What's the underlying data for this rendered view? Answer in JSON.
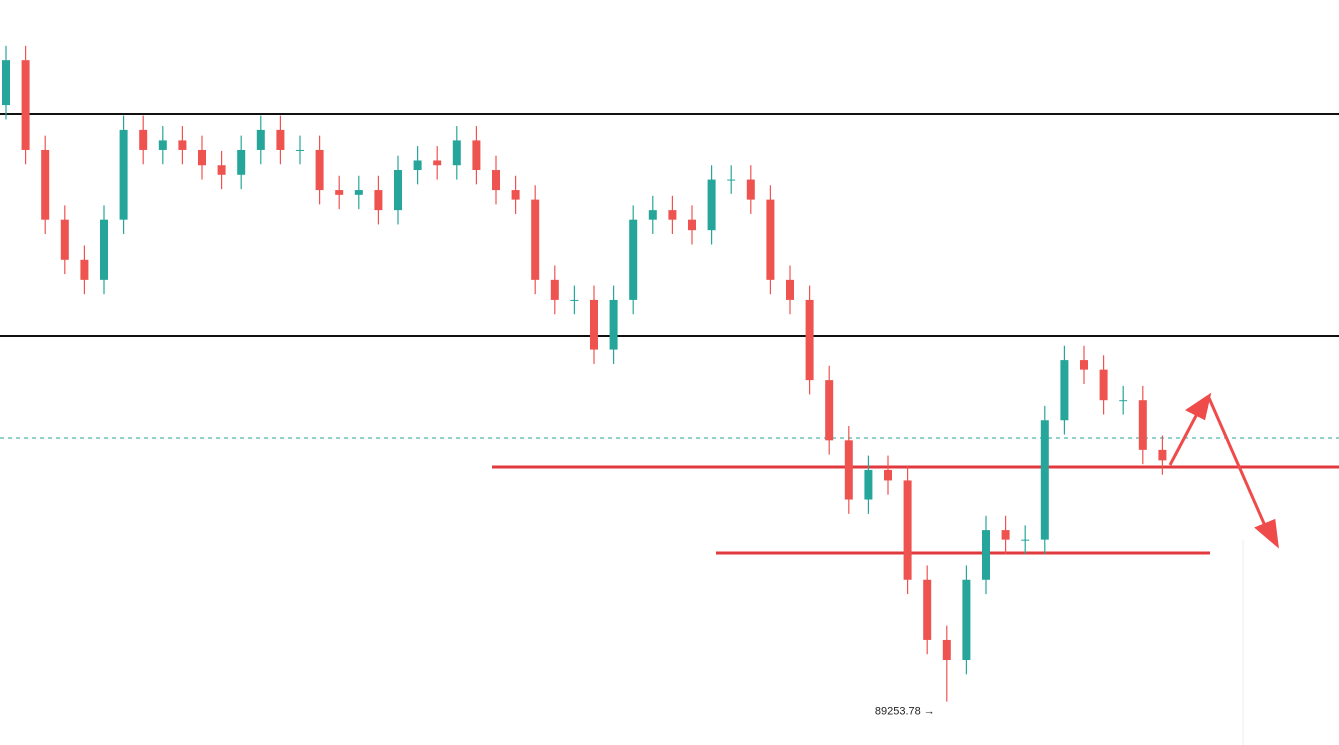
{
  "chart_data": {
    "type": "candlestick",
    "up_color": "#26a69a",
    "down_color": "#ef5350",
    "ylim": [
      88800,
      96600
    ],
    "open": [
      95500,
      95970,
      95030,
      94300,
      93880,
      93670,
      94300,
      95240,
      95030,
      95130,
      95030,
      94870,
      94770,
      95030,
      95240,
      95030,
      95030,
      94610,
      94560,
      94610,
      94400,
      94820,
      94920,
      94870,
      95130,
      94820,
      94610,
      94510,
      93670,
      93460,
      93460,
      92940,
      93460,
      94300,
      94400,
      94300,
      94190,
      94720,
      94720,
      94510,
      93670,
      93460,
      92620,
      91990,
      91370,
      91680,
      91570,
      90530,
      89900,
      89690,
      90530,
      91050,
      90950,
      90950,
      92200,
      92830,
      92730,
      92410,
      92410,
      91890
    ],
    "high": [
      96120,
      96120,
      95180,
      94450,
      94030,
      94450,
      95390,
      95390,
      95280,
      95280,
      95180,
      95020,
      95180,
      95390,
      95390,
      95180,
      95180,
      94760,
      94760,
      94760,
      94970,
      95070,
      95070,
      95280,
      95280,
      94970,
      94760,
      94660,
      93820,
      93610,
      93610,
      93610,
      94450,
      94550,
      94550,
      94450,
      94870,
      94870,
      94870,
      94660,
      93820,
      93610,
      92770,
      92140,
      91830,
      91830,
      91720,
      90680,
      90050,
      90680,
      91200,
      91200,
      91100,
      92350,
      92980,
      92980,
      92880,
      92560,
      92560,
      92040
    ],
    "low": [
      95350,
      94880,
      94150,
      93730,
      93520,
      93520,
      94150,
      94880,
      94880,
      94880,
      94720,
      94620,
      94620,
      94880,
      94880,
      94880,
      94460,
      94410,
      94410,
      94250,
      94250,
      94670,
      94720,
      94720,
      94670,
      94460,
      94360,
      93520,
      93310,
      93310,
      92790,
      92790,
      93310,
      94150,
      94150,
      94040,
      94040,
      94570,
      94360,
      93520,
      93310,
      92470,
      91840,
      91220,
      91220,
      91420,
      90380,
      89750,
      89253.78,
      89540,
      90380,
      90800,
      90800,
      90800,
      92050,
      92580,
      92260,
      92260,
      91740,
      91630
    ],
    "close": [
      95970,
      95030,
      94300,
      93880,
      93670,
      94300,
      95240,
      95030,
      95130,
      95030,
      94870,
      94770,
      95030,
      95240,
      95030,
      95030,
      94610,
      94560,
      94610,
      94400,
      94820,
      94920,
      94870,
      95130,
      94820,
      94610,
      94510,
      93670,
      93460,
      93460,
      92940,
      93460,
      94300,
      94400,
      94300,
      94190,
      94720,
      94720,
      94510,
      93670,
      93460,
      92620,
      91990,
      91370,
      91680,
      91570,
      90530,
      89900,
      89690,
      90530,
      91050,
      90950,
      90950,
      92200,
      92830,
      92730,
      92410,
      92410,
      91890,
      91780
    ],
    "levels": [
      {
        "value": 95406,
        "color": "#111111"
      },
      {
        "value": 93082,
        "color": "#111111"
      },
      {
        "value": 92014,
        "color": "#26a69a",
        "dashed": true
      },
      {
        "value": 91710,
        "color": "#e03a3e"
      },
      {
        "value": 90810,
        "color": "#e03a3e"
      }
    ],
    "low_annotation": "89253.78 →"
  }
}
